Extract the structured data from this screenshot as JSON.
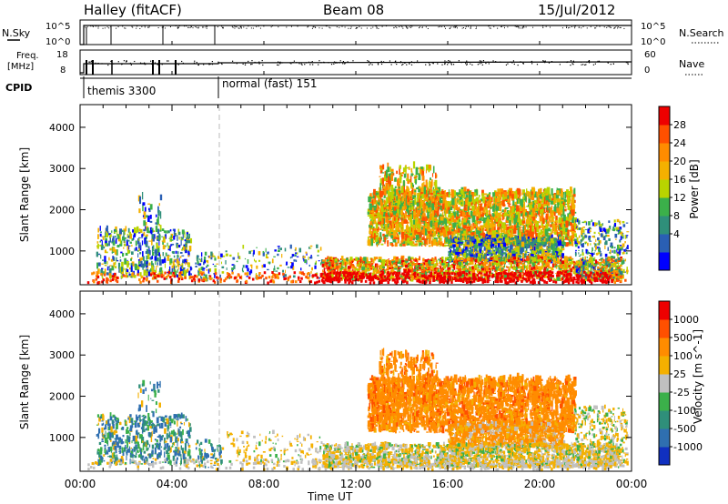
{
  "header": {
    "station": "Halley (fitACF)",
    "beam": "Beam 08",
    "date": "15/Jul/2012"
  },
  "top_panel": {
    "left_label": "N.Sky",
    "right_label": "N.Search",
    "left_ticks": [
      "10^5",
      "10^0"
    ],
    "right_ticks": [
      "10^5",
      "10^0"
    ]
  },
  "freq_panel": {
    "left_label_1": "Freq.",
    "left_label_2": "[MHz]",
    "left_ticks": [
      "18",
      "8"
    ],
    "right_label": "Nave",
    "right_ticks": [
      "60",
      "0"
    ]
  },
  "cpid_panel": {
    "label": "CPID",
    "mode_1": "themis 3300",
    "mode_2": "normal (fast) 151"
  },
  "chart_data": [
    {
      "type": "heatmap",
      "name": "power",
      "ylabel": "Slant Range [km]",
      "xlabel": "",
      "ylim": [
        180,
        4550
      ],
      "yticks": [
        "4000",
        "3000",
        "2000",
        "1000"
      ],
      "colorbar_label": "Power [dB]",
      "colorbar_ticks": [
        "28",
        "24",
        "20",
        "16",
        "12",
        "8",
        "4"
      ],
      "colorbar_colors": [
        "#0000ff",
        "#2a5fb4",
        "#2f8f7a",
        "#3bb04a",
        "#b8d400",
        "#f4b000",
        "#ff8c00",
        "#ff5000",
        "#ee0000"
      ]
    },
    {
      "type": "heatmap",
      "name": "velocity",
      "ylabel": "Slant Range [km]",
      "xlabel": "Time UT",
      "ylim": [
        180,
        4550
      ],
      "yticks": [
        "4000",
        "3000",
        "2000",
        "1000"
      ],
      "xticks": [
        "00:00",
        "04:00",
        "08:00",
        "12:00",
        "16:00",
        "20:00",
        "00:00"
      ],
      "colorbar_label": "Velocity [m s^-1]",
      "colorbar_ticks": [
        "1000",
        "500",
        "100",
        "25",
        "-25",
        "-100",
        "-500",
        "-1000"
      ],
      "colorbar_colors": [
        "#1030c0",
        "#2f6fb0",
        "#2f8f7a",
        "#3bb04a",
        "#c0c0c0",
        "#f4b000",
        "#ff8c00",
        "#ff5000",
        "#ee0000"
      ]
    }
  ]
}
